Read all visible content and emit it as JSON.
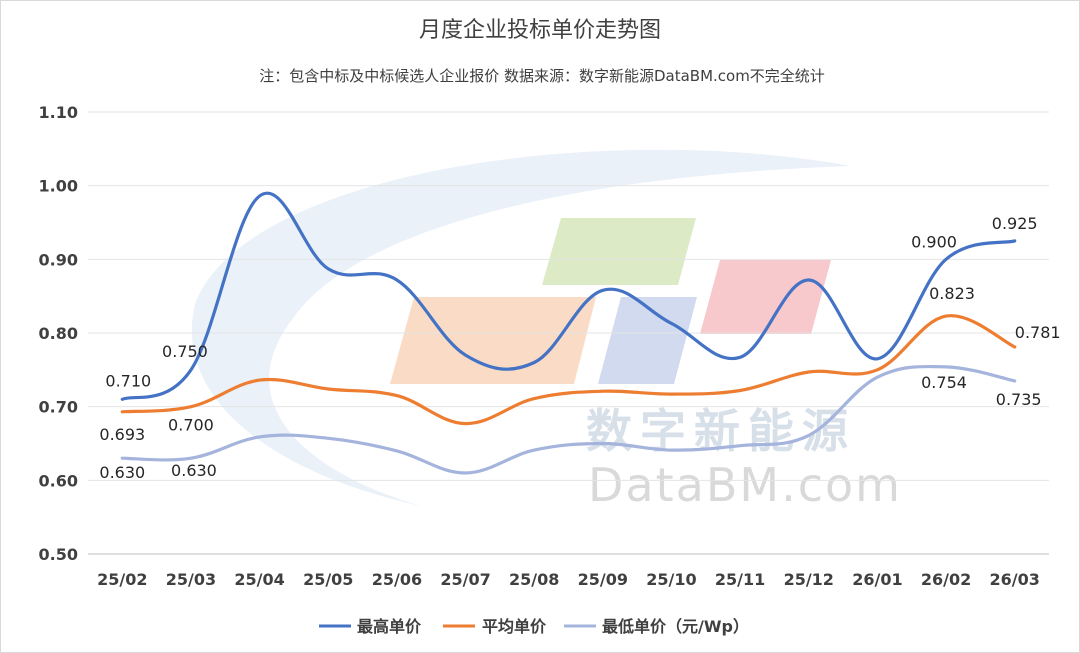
{
  "chart_data": {
    "type": "line",
    "title": "月度企业投标单价走势图",
    "subtitle": "注：包含中标及中标候选人企业报价 数据来源：数字新能源DataBM.com不完全统计",
    "categories": [
      "25/02",
      "25/03",
      "25/04",
      "25/05",
      "25/06",
      "25/07",
      "25/08",
      "25/09",
      "25/10",
      "25/11",
      "25/12",
      "26/01",
      "26/02",
      "26/03"
    ],
    "ylim": [
      0.5,
      1.1
    ],
    "yticks": [
      "0.50",
      "0.60",
      "0.70",
      "0.80",
      "0.90",
      "1.00",
      "1.10"
    ],
    "grid": true,
    "legend_position": "bottom",
    "series": [
      {
        "name": "最高单价",
        "color": "#4472c4",
        "values": [
          0.71,
          0.75,
          0.986,
          0.887,
          0.872,
          0.77,
          0.76,
          0.858,
          0.813,
          0.767,
          0.872,
          0.765,
          0.9,
          0.925
        ],
        "labels": {
          "0": "0.710",
          "1": "0.750",
          "12": "0.900",
          "13": "0.925"
        }
      },
      {
        "name": "平均单价",
        "color": "#ed7d31",
        "values": [
          0.693,
          0.7,
          0.736,
          0.724,
          0.715,
          0.677,
          0.711,
          0.721,
          0.717,
          0.722,
          0.747,
          0.75,
          0.823,
          0.781
        ],
        "labels": {
          "0": "0.693",
          "1": "0.700",
          "12": "0.823",
          "13": "0.781"
        }
      },
      {
        "name": "最低单价（元/Wp）",
        "color": "#a5b4dd",
        "values": [
          0.63,
          0.63,
          0.659,
          0.657,
          0.64,
          0.61,
          0.641,
          0.65,
          0.641,
          0.647,
          0.661,
          0.74,
          0.754,
          0.735
        ],
        "labels": {
          "0": "0.630",
          "1": "0.630",
          "12": "0.754",
          "13": "0.735"
        }
      }
    ]
  },
  "watermark": {
    "cn": "数字新能源",
    "en": "DataBM.com",
    "colors": [
      "#f7c9a8",
      "#c9dfa8",
      "#b8c6e6",
      "#f2aab1"
    ]
  }
}
